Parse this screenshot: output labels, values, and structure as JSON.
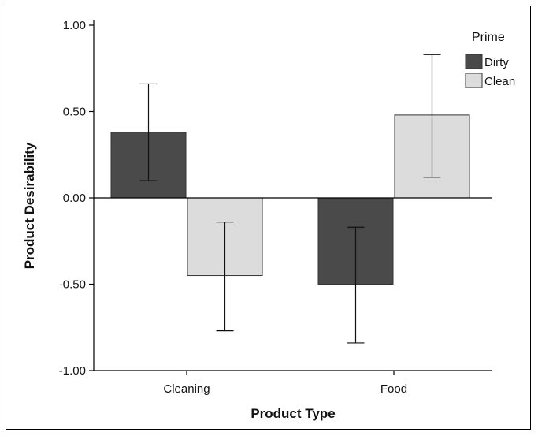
{
  "chart_data": {
    "type": "bar",
    "title": "",
    "xlabel": "Product Type",
    "ylabel": "Product Desirability",
    "categories": [
      "Cleaning",
      "Food"
    ],
    "ylim": [
      -1.0,
      1.0
    ],
    "yticks": [
      "1.00",
      "0.50",
      "0.00",
      "-0.50",
      "-1.00"
    ],
    "ytick_values": [
      1.0,
      0.5,
      0.0,
      -0.5,
      -1.0
    ],
    "legend_title": "Prime",
    "legend_position": "top-right",
    "grid": false,
    "series": [
      {
        "name": "Dirty",
        "color": "#4a4a4a",
        "values": [
          0.38,
          -0.5
        ],
        "error_low": [
          0.1,
          -0.84
        ],
        "error_high": [
          0.66,
          -0.17
        ]
      },
      {
        "name": "Clean",
        "color": "#dcdcdc",
        "values": [
          -0.45,
          0.48
        ],
        "error_low": [
          -0.77,
          0.12
        ],
        "error_high": [
          -0.14,
          0.83
        ]
      }
    ]
  }
}
